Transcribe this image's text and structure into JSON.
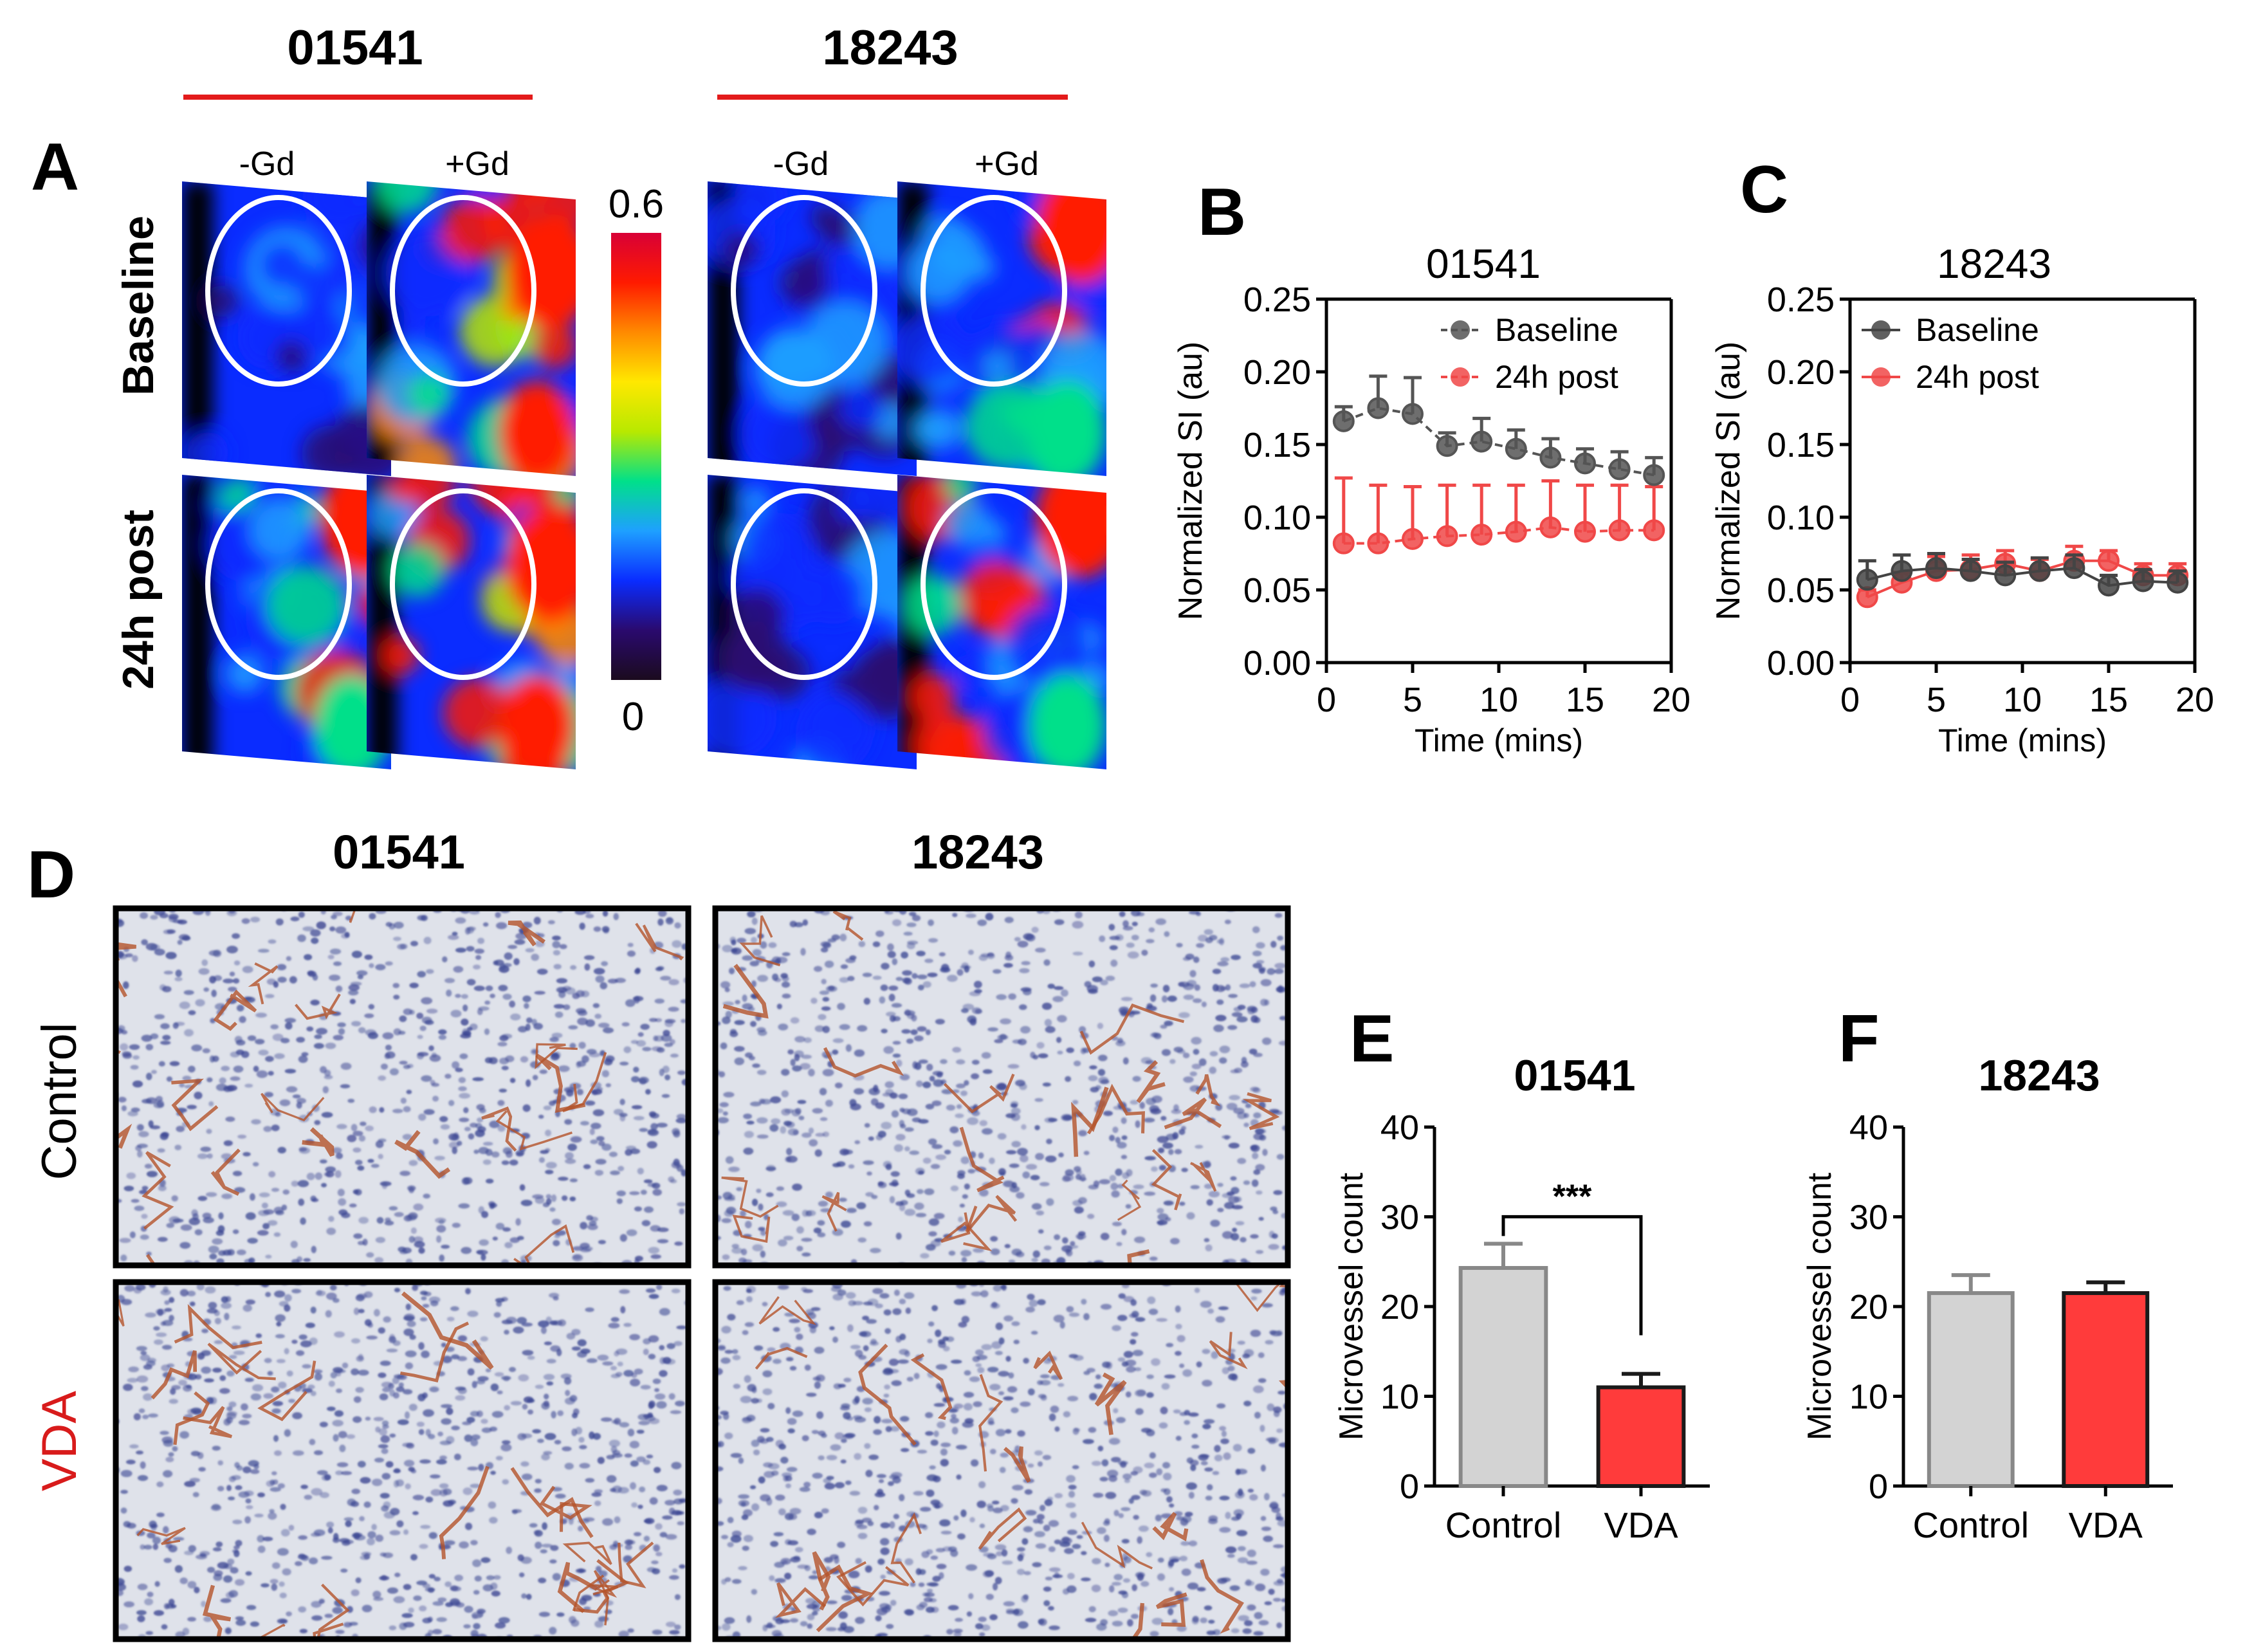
{
  "panelA": {
    "letter": "A",
    "group_labels": [
      "01541",
      "18243"
    ],
    "group_color": "#e31b1b",
    "col_labels": [
      "-Gd",
      "+Gd"
    ],
    "row_labels": [
      "Baseline",
      "24h post"
    ],
    "colorbar": {
      "max": "0.6",
      "min": "0",
      "colors": [
        "#1b0b1e",
        "#2a0a6e",
        "#0a2cff",
        "#1ea0ff",
        "#00e08a",
        "#b8e900",
        "#ffe800",
        "#ff8a00",
        "#ff1a00",
        "#d80036"
      ]
    }
  },
  "panelD": {
    "letter": "D",
    "col_labels": [
      "01541",
      "18243"
    ],
    "row_labels": [
      "Control",
      "VDA"
    ],
    "row_label_colors": [
      "#000000",
      "#d81b1b"
    ],
    "stain": {
      "background": "#dfe2ea",
      "nuclei": "#3a4592",
      "vessel": "#b4542a"
    }
  },
  "chart_data": [
    {
      "panel": "B",
      "type": "line",
      "title": "01541",
      "xlabel": "Time (mins)",
      "ylabel": "Normalized SI (au)",
      "xlim": [
        0,
        20
      ],
      "ylim": [
        0,
        0.25
      ],
      "xticks": [
        "0",
        "5",
        "10",
        "15",
        "20"
      ],
      "yticks": [
        "0.00",
        "0.05",
        "0.10",
        "0.15",
        "0.20",
        "0.25"
      ],
      "legend_position": "top-right",
      "series": [
        {
          "name": "Baseline",
          "color": "#555555",
          "line": "dashed",
          "x": [
            1,
            3,
            5,
            7,
            9,
            11,
            13,
            15,
            17,
            19
          ],
          "y": [
            0.166,
            0.175,
            0.171,
            0.149,
            0.152,
            0.147,
            0.141,
            0.137,
            0.133,
            0.129
          ],
          "err": [
            0.01,
            0.022,
            0.025,
            0.009,
            0.016,
            0.013,
            0.013,
            0.01,
            0.012,
            0.012
          ]
        },
        {
          "name": "24h post",
          "color": "#f04848",
          "line": "dashed",
          "x": [
            1,
            3,
            5,
            7,
            9,
            11,
            13,
            15,
            17,
            19
          ],
          "y": [
            0.082,
            0.082,
            0.085,
            0.087,
            0.088,
            0.09,
            0.093,
            0.09,
            0.091,
            0.091
          ],
          "err": [
            0.045,
            0.04,
            0.036,
            0.035,
            0.034,
            0.032,
            0.032,
            0.032,
            0.031,
            0.03
          ]
        }
      ]
    },
    {
      "panel": "C",
      "type": "line",
      "title": "18243",
      "xlabel": "Time (mins)",
      "ylabel": "Normalized SI (au)",
      "xlim": [
        0,
        20
      ],
      "ylim": [
        0,
        0.25
      ],
      "xticks": [
        "0",
        "5",
        "10",
        "15",
        "20"
      ],
      "yticks": [
        "0.00",
        "0.05",
        "0.10",
        "0.15",
        "0.20",
        "0.25"
      ],
      "legend_position": "top-left",
      "series": [
        {
          "name": "Baseline",
          "color": "#444444",
          "line": "solid",
          "x": [
            1,
            3,
            5,
            7,
            9,
            11,
            13,
            15,
            17,
            19
          ],
          "y": [
            0.057,
            0.063,
            0.065,
            0.063,
            0.06,
            0.063,
            0.065,
            0.053,
            0.056,
            0.055
          ],
          "err": [
            0.013,
            0.011,
            0.01,
            0.008,
            0.009,
            0.009,
            0.009,
            0.007,
            0.008,
            0.008
          ]
        },
        {
          "name": "24h post",
          "color": "#f04848",
          "line": "solid",
          "x": [
            1,
            3,
            5,
            7,
            9,
            11,
            13,
            15,
            17,
            19
          ],
          "y": [
            0.045,
            0.055,
            0.063,
            0.064,
            0.068,
            0.063,
            0.07,
            0.07,
            0.06,
            0.06
          ],
          "err": [
            0.005,
            0.007,
            0.01,
            0.01,
            0.009,
            0.008,
            0.01,
            0.007,
            0.008,
            0.008
          ]
        }
      ]
    },
    {
      "panel": "E",
      "type": "bar",
      "title": "01541",
      "ylabel": "Microvessel count",
      "categories": [
        "Control",
        "VDA"
      ],
      "values": [
        24.3,
        11
      ],
      "errors": [
        2.7,
        1.5
      ],
      "colors": [
        "#d3d3d3",
        "#ff3b3b"
      ],
      "edge_colors": [
        "#888888",
        "#1a1a1a"
      ],
      "ylim": [
        0,
        40
      ],
      "yticks": [
        "0",
        "10",
        "20",
        "30",
        "40"
      ],
      "significance": "***"
    },
    {
      "panel": "F",
      "type": "bar",
      "title": "18243",
      "ylabel": "Microvessel count",
      "categories": [
        "Control",
        "VDA"
      ],
      "values": [
        21.5,
        21.5
      ],
      "errors": [
        2,
        1.2
      ],
      "colors": [
        "#d3d3d3",
        "#ff3b3b"
      ],
      "edge_colors": [
        "#888888",
        "#1a1a1a"
      ],
      "ylim": [
        0,
        40
      ],
      "yticks": [
        "0",
        "10",
        "20",
        "30",
        "40"
      ],
      "significance": ""
    }
  ]
}
